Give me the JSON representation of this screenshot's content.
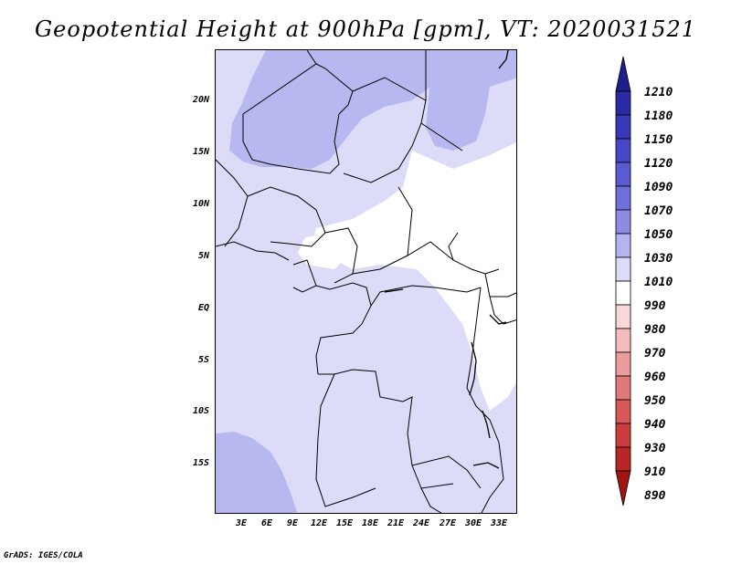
{
  "title": "Geopotential Height at 900hPa [gpm], VT: 2020031521",
  "footer": "GrADS: IGES/COLA",
  "map": {
    "lon_range": [
      0,
      35
    ],
    "lat_range": [
      -20,
      25
    ],
    "y_axis_labels": [
      "20N",
      "15N",
      "10N",
      "5N",
      "EQ",
      "5S",
      "10S",
      "15S"
    ],
    "x_axis_labels": [
      "3E",
      "6E",
      "9E",
      "12E",
      "15E",
      "18E",
      "21E",
      "24E",
      "27E",
      "30E",
      "33E"
    ]
  },
  "colorbar": {
    "labels": [
      "1210",
      "1180",
      "1150",
      "1120",
      "1090",
      "1070",
      "1050",
      "1030",
      "1010",
      "990",
      "980",
      "970",
      "960",
      "950",
      "940",
      "930",
      "910",
      "890"
    ],
    "colors": [
      "#1e1e8c",
      "#2a2aa6",
      "#3838b8",
      "#4646c6",
      "#5a5ad2",
      "#7070dc",
      "#8c8ce6",
      "#b4b4f0",
      "#dcdcf8",
      "#ffffff",
      "#f8d8d8",
      "#f4bcbc",
      "#ec9c9c",
      "#e27878",
      "#d85858",
      "#cc3c3c",
      "#b82626",
      "#a01414"
    ]
  }
}
